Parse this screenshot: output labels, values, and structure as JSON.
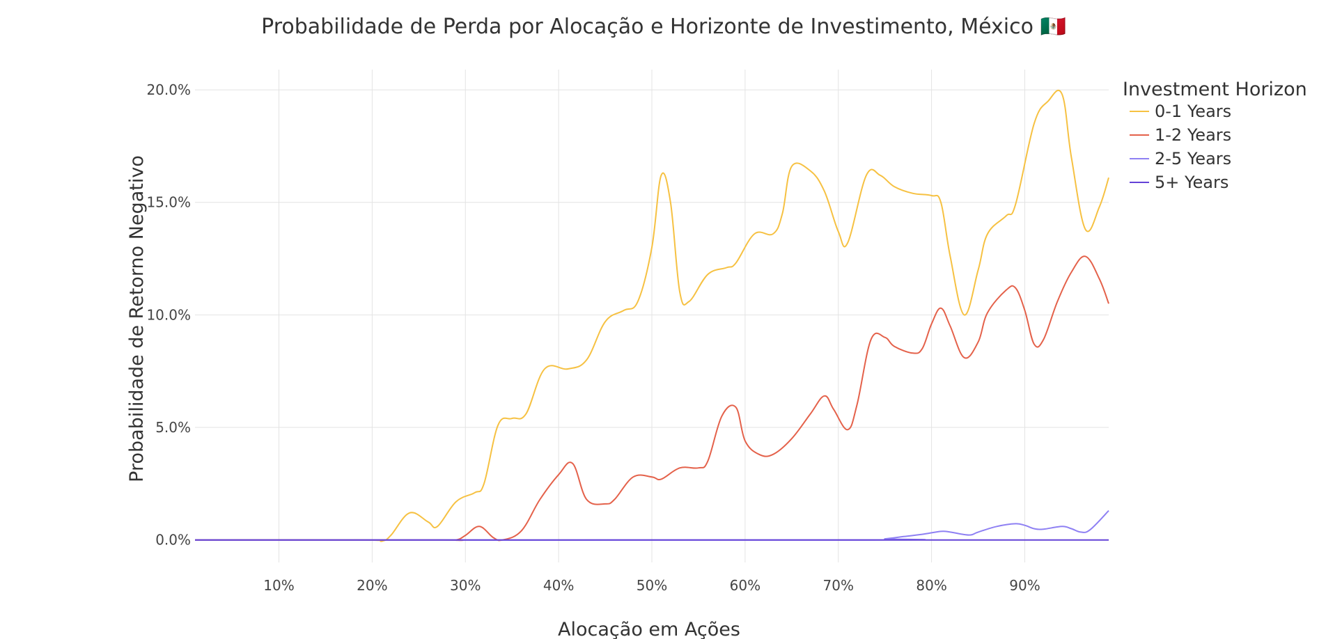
{
  "chart_data": {
    "type": "line",
    "title": "Probabilidade de Perda por Alocação e Horizonte de Investimento, México 🇲🇽",
    "xlabel": "Alocação em Ações",
    "ylabel": "Probabilidade de Retorno Negativo",
    "xlim": [
      1,
      99
    ],
    "ylim": [
      -1.0,
      20.9
    ],
    "x_ticks": [
      10,
      20,
      30,
      40,
      50,
      60,
      70,
      80,
      90
    ],
    "x_tick_labels": [
      "10%",
      "20%",
      "30%",
      "40%",
      "50%",
      "60%",
      "70%",
      "80%",
      "90%"
    ],
    "y_ticks": [
      0,
      5,
      10,
      15,
      20
    ],
    "y_tick_labels": [
      "0.0%",
      "5.0%",
      "10.0%",
      "15.0%",
      "20.0%"
    ],
    "grid": true,
    "legend": {
      "title": "Investment Horizon",
      "position": "top-right"
    },
    "series": [
      {
        "name": "0-1 Years",
        "color": "#F6C142",
        "points": [
          [
            1,
            0
          ],
          [
            19,
            0
          ],
          [
            21,
            -0.05
          ],
          [
            22,
            0.2
          ],
          [
            24,
            1.2
          ],
          [
            26,
            0.8
          ],
          [
            27,
            0.6
          ],
          [
            29,
            1.7
          ],
          [
            31,
            2.1
          ],
          [
            32,
            2.5
          ],
          [
            33.5,
            5.1
          ],
          [
            35,
            5.4
          ],
          [
            36.5,
            5.6
          ],
          [
            38.5,
            7.6
          ],
          [
            41,
            7.6
          ],
          [
            43,
            8
          ],
          [
            45,
            9.7
          ],
          [
            47,
            10.2
          ],
          [
            48.5,
            10.6
          ],
          [
            50,
            13
          ],
          [
            51,
            16.2
          ],
          [
            52,
            15
          ],
          [
            53,
            11
          ],
          [
            54,
            10.6
          ],
          [
            56,
            11.8
          ],
          [
            58,
            12.1
          ],
          [
            59,
            12.3
          ],
          [
            61,
            13.6
          ],
          [
            63,
            13.6
          ],
          [
            64,
            14.5
          ],
          [
            65,
            16.6
          ],
          [
            67,
            16.4
          ],
          [
            68.5,
            15.5
          ],
          [
            70,
            13.7
          ],
          [
            71,
            13.2
          ],
          [
            73,
            16.2
          ],
          [
            74.5,
            16.2
          ],
          [
            76,
            15.7
          ],
          [
            78,
            15.4
          ],
          [
            80,
            15.3
          ],
          [
            81,
            15
          ],
          [
            82,
            12.6
          ],
          [
            83.5,
            10
          ],
          [
            85,
            12
          ],
          [
            86,
            13.6
          ],
          [
            88,
            14.4
          ],
          [
            89,
            14.9
          ],
          [
            91,
            18.5
          ],
          [
            92.5,
            19.5
          ],
          [
            94,
            19.8
          ],
          [
            95,
            17
          ],
          [
            96.5,
            13.8
          ],
          [
            98,
            14.8
          ],
          [
            99,
            16.1
          ]
        ]
      },
      {
        "name": "1-2 Years",
        "color": "#E4614A",
        "points": [
          [
            1,
            0
          ],
          [
            27,
            0
          ],
          [
            29,
            0
          ],
          [
            30,
            0.2
          ],
          [
            31.5,
            0.6
          ],
          [
            33,
            0.1
          ],
          [
            34,
            0
          ],
          [
            36,
            0.4
          ],
          [
            38,
            1.8
          ],
          [
            40,
            2.9
          ],
          [
            41.5,
            3.4
          ],
          [
            43,
            1.8
          ],
          [
            45,
            1.6
          ],
          [
            46,
            1.8
          ],
          [
            48,
            2.8
          ],
          [
            50,
            2.8
          ],
          [
            51,
            2.7
          ],
          [
            53,
            3.2
          ],
          [
            55,
            3.2
          ],
          [
            56,
            3.5
          ],
          [
            57.5,
            5.5
          ],
          [
            59,
            5.9
          ],
          [
            60,
            4.4
          ],
          [
            61.5,
            3.8
          ],
          [
            63,
            3.8
          ],
          [
            65,
            4.5
          ],
          [
            67,
            5.6
          ],
          [
            68.5,
            6.4
          ],
          [
            69.5,
            5.8
          ],
          [
            71,
            4.9
          ],
          [
            72,
            6
          ],
          [
            73.5,
            8.9
          ],
          [
            75,
            9
          ],
          [
            76,
            8.6
          ],
          [
            78,
            8.3
          ],
          [
            79,
            8.5
          ],
          [
            80,
            9.6
          ],
          [
            81,
            10.3
          ],
          [
            82,
            9.5
          ],
          [
            83.5,
            8.1
          ],
          [
            85,
            8.8
          ],
          [
            86,
            10.1
          ],
          [
            88,
            11.1
          ],
          [
            89,
            11.2
          ],
          [
            90,
            10.2
          ],
          [
            91,
            8.7
          ],
          [
            92,
            8.9
          ],
          [
            93.5,
            10.6
          ],
          [
            95,
            11.9
          ],
          [
            96.5,
            12.6
          ],
          [
            98,
            11.6
          ],
          [
            99,
            10.5
          ]
        ]
      },
      {
        "name": "2-5 Years",
        "color": "#8E80F3",
        "points": [
          [
            1,
            0
          ],
          [
            73,
            0
          ],
          [
            75,
            0.05
          ],
          [
            77,
            0.15
          ],
          [
            79,
            0.25
          ],
          [
            81,
            0.38
          ],
          [
            82,
            0.35
          ],
          [
            84,
            0.22
          ],
          [
            85,
            0.35
          ],
          [
            87,
            0.6
          ],
          [
            89,
            0.72
          ],
          [
            90,
            0.65
          ],
          [
            91,
            0.5
          ],
          [
            92,
            0.48
          ],
          [
            94,
            0.6
          ],
          [
            95,
            0.5
          ],
          [
            96,
            0.35
          ],
          [
            97,
            0.45
          ],
          [
            99,
            1.3
          ]
        ]
      },
      {
        "name": "5+ Years",
        "color": "#6342D7",
        "points": [
          [
            1,
            0
          ],
          [
            99,
            0
          ]
        ]
      }
    ]
  }
}
